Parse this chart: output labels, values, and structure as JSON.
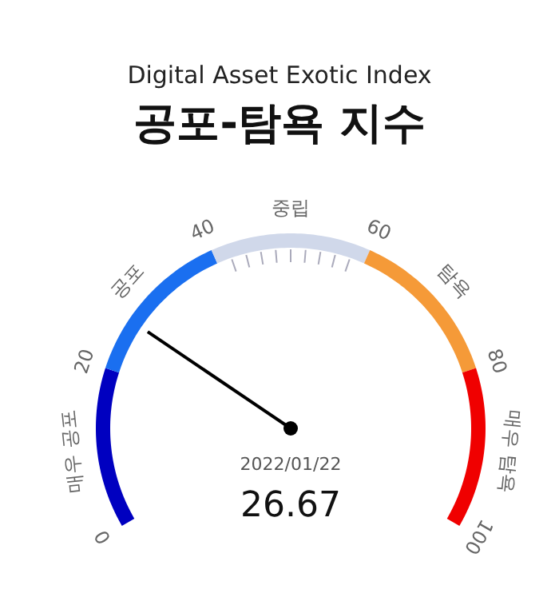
{
  "chart_data": {
    "type": "donut",
    "subtitle": "Digital Asset Exotic Index",
    "title": "공포-탐욕 지수",
    "categories": [
      "매우 공포",
      "공포",
      "중립",
      "탐욕",
      "매우 탐욕"
    ],
    "values": [
      20,
      20,
      20,
      20,
      20
    ],
    "colors": [
      "#0000c0",
      "#1a6ff0",
      "#d0d8ea",
      "#f59a38",
      "#f00000"
    ],
    "needle": "공포",
    "annotations": [
      "0",
      "20",
      "40",
      "60",
      "80",
      "100",
      "2022/01/22",
      "26.67"
    ]
  }
}
